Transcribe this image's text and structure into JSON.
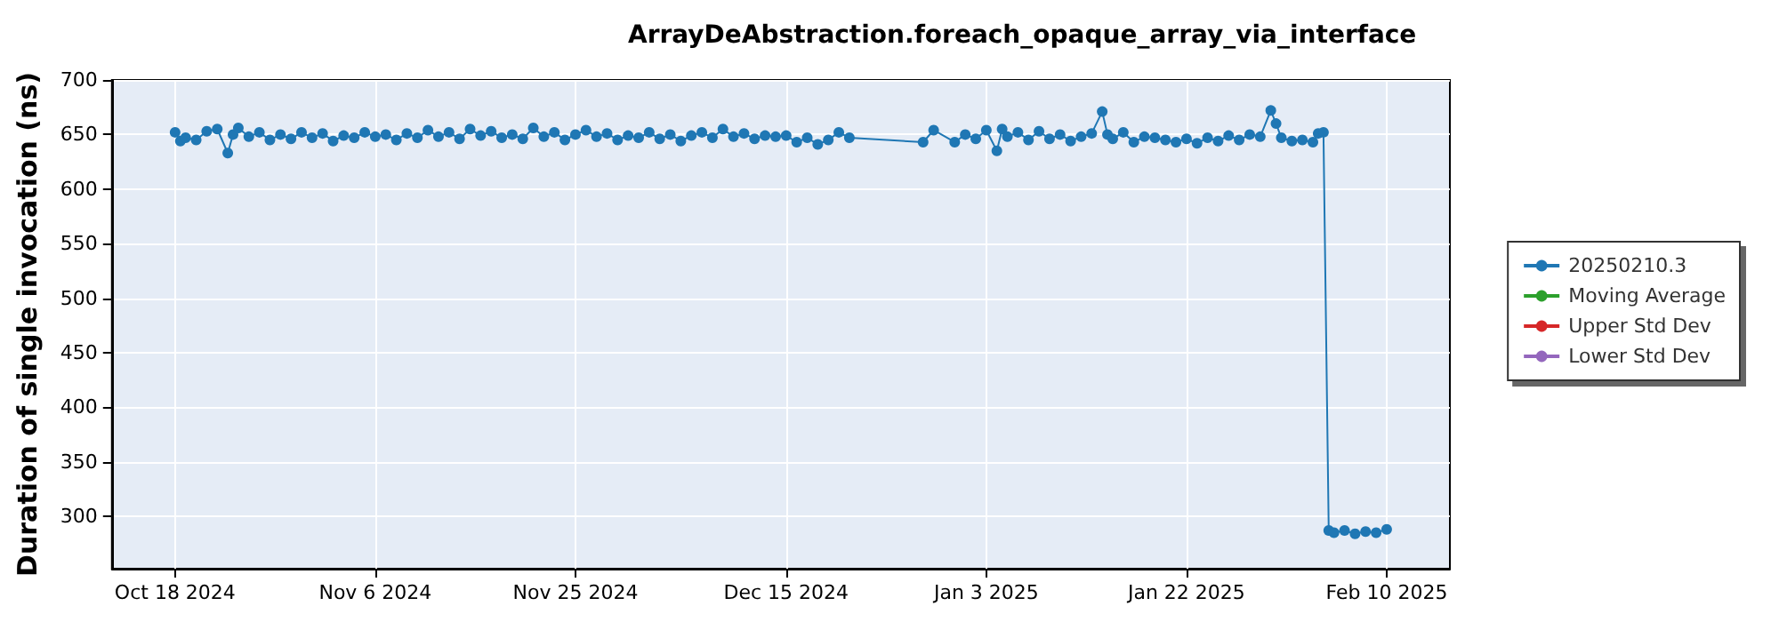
{
  "chart_data": {
    "type": "line",
    "title": "ArrayDeAbstraction.foreach_opaque_array_via_interface",
    "ylabel": "Duration of single invocation (ns)",
    "xlim": [
      "2024-10-12",
      "2025-02-16"
    ],
    "xticks": [
      {
        "value": "2024-10-18",
        "label": "Oct 18 2024"
      },
      {
        "value": "2024-11-06",
        "label": "Nov 6 2024"
      },
      {
        "value": "2024-11-25",
        "label": "Nov 25 2024"
      },
      {
        "value": "2024-12-15",
        "label": "Dec 15 2024"
      },
      {
        "value": "2025-01-03",
        "label": "Jan 3 2025"
      },
      {
        "value": "2025-01-22",
        "label": "Jan 22 2025"
      },
      {
        "value": "2025-02-10",
        "label": "Feb 10 2025"
      }
    ],
    "ylim": [
      252,
      700
    ],
    "yticks": [
      300,
      350,
      400,
      450,
      500,
      550,
      600,
      650,
      700
    ],
    "grid": true,
    "legend": "right",
    "marker": "circle",
    "line_style": "solid",
    "x": [
      "2024-10-18",
      "2024-10-18T12:00",
      "2024-10-19",
      "2024-10-20",
      "2024-10-21",
      "2024-10-22",
      "2024-10-23",
      "2024-10-23T12:00",
      "2024-10-24",
      "2024-10-25",
      "2024-10-26",
      "2024-10-27",
      "2024-10-28",
      "2024-10-29",
      "2024-10-30",
      "2024-10-31",
      "2024-11-01",
      "2024-11-02",
      "2024-11-03",
      "2024-11-04",
      "2024-11-05",
      "2024-11-06",
      "2024-11-07",
      "2024-11-08",
      "2024-11-09",
      "2024-11-10",
      "2024-11-11",
      "2024-11-12",
      "2024-11-13",
      "2024-11-14",
      "2024-11-15",
      "2024-11-16",
      "2024-11-17",
      "2024-11-18",
      "2024-11-19",
      "2024-11-20",
      "2024-11-21",
      "2024-11-22",
      "2024-11-23",
      "2024-11-24",
      "2024-11-25",
      "2024-11-26",
      "2024-11-27",
      "2024-11-28",
      "2024-11-29",
      "2024-11-30",
      "2024-12-01",
      "2024-12-02",
      "2024-12-03",
      "2024-12-04",
      "2024-12-05",
      "2024-12-06",
      "2024-12-07",
      "2024-12-08",
      "2024-12-09",
      "2024-12-10",
      "2024-12-11",
      "2024-12-12",
      "2024-12-13",
      "2024-12-14",
      "2024-12-15",
      "2024-12-16",
      "2024-12-17",
      "2024-12-18",
      "2024-12-19",
      "2024-12-20",
      "2024-12-21",
      "2024-12-28",
      "2024-12-29",
      "2024-12-31",
      "2025-01-01",
      "2025-01-02",
      "2025-01-03",
      "2025-01-04",
      "2025-01-04T12:00",
      "2025-01-05",
      "2025-01-06",
      "2025-01-07",
      "2025-01-08",
      "2025-01-09",
      "2025-01-10",
      "2025-01-11",
      "2025-01-12",
      "2025-01-13",
      "2025-01-14",
      "2025-01-14T12:00",
      "2025-01-15",
      "2025-01-16",
      "2025-01-17",
      "2025-01-18",
      "2025-01-19",
      "2025-01-20",
      "2025-01-21",
      "2025-01-22",
      "2025-01-23",
      "2025-01-24",
      "2025-01-25",
      "2025-01-26",
      "2025-01-27",
      "2025-01-28",
      "2025-01-29",
      "2025-01-30",
      "2025-01-30T12:00",
      "2025-01-31",
      "2025-02-01",
      "2025-02-02",
      "2025-02-03",
      "2025-02-03T12:00",
      "2025-02-04",
      "2025-02-04T12:00",
      "2025-02-05",
      "2025-02-06",
      "2025-02-07",
      "2025-02-08",
      "2025-02-09",
      "2025-02-10"
    ],
    "series": [
      {
        "name": "20250210.3",
        "color": "#1f77b4",
        "values": [
          652,
          644,
          647,
          645,
          653,
          655,
          633,
          650,
          656,
          648,
          652,
          645,
          650,
          646,
          652,
          647,
          651,
          644,
          649,
          647,
          652,
          648,
          650,
          645,
          651,
          647,
          654,
          648,
          652,
          646,
          655,
          649,
          653,
          647,
          650,
          646,
          656,
          648,
          652,
          645,
          650,
          654,
          648,
          651,
          645,
          649,
          647,
          652,
          646,
          650,
          644,
          649,
          652,
          647,
          655,
          648,
          651,
          646,
          649,
          648,
          649,
          643,
          647,
          641,
          645,
          652,
          647,
          643,
          654,
          643,
          650,
          646,
          654,
          635,
          655,
          648,
          652,
          645,
          653,
          646,
          650,
          644,
          648,
          651,
          671,
          650,
          646,
          652,
          643,
          648,
          647,
          645,
          643,
          646,
          642,
          647,
          644,
          649,
          645,
          650,
          648,
          672,
          660,
          647,
          644,
          645,
          643,
          651,
          652,
          287,
          285,
          287,
          284,
          286,
          285,
          288
        ]
      },
      {
        "name": "Moving Average",
        "color": "#2ca02c",
        "values": [
          null,
          null,
          null,
          null,
          null,
          null,
          null,
          null,
          null,
          null,
          null,
          null,
          null,
          null,
          null,
          null,
          null,
          null,
          null,
          null,
          null,
          null,
          null,
          null,
          null,
          null,
          null,
          null,
          null,
          null,
          null,
          null,
          null,
          null,
          null,
          null,
          null,
          null,
          null,
          null,
          null,
          null,
          null,
          null,
          null,
          null,
          null,
          null,
          null,
          null,
          null,
          null,
          null,
          null,
          null,
          null,
          null,
          null,
          null,
          null,
          null,
          null,
          null,
          null,
          null,
          null,
          null,
          null,
          null,
          null,
          null,
          null,
          null,
          null,
          null,
          null,
          null,
          null,
          null,
          null,
          null,
          null,
          null,
          null,
          null,
          null,
          null,
          null,
          null,
          null,
          null,
          null,
          null,
          null,
          null,
          null,
          null,
          null,
          null,
          null,
          null,
          null,
          null,
          null,
          null,
          null,
          null,
          null,
          null,
          null,
          null,
          null,
          null,
          null,
          null,
          null
        ]
      },
      {
        "name": "Upper Std Dev",
        "color": "#d62728",
        "values": [
          null,
          null,
          null,
          null,
          null,
          null,
          null,
          null,
          null,
          null,
          null,
          null,
          null,
          null,
          null,
          null,
          null,
          null,
          null,
          null,
          null,
          null,
          null,
          null,
          null,
          null,
          null,
          null,
          null,
          null,
          null,
          null,
          null,
          null,
          null,
          null,
          null,
          null,
          null,
          null,
          null,
          null,
          null,
          null,
          null,
          null,
          null,
          null,
          null,
          null,
          null,
          null,
          null,
          null,
          null,
          null,
          null,
          null,
          null,
          null,
          null,
          null,
          null,
          null,
          null,
          null,
          null,
          null,
          null,
          null,
          null,
          null,
          null,
          null,
          null,
          null,
          null,
          null,
          null,
          null,
          null,
          null,
          null,
          null,
          null,
          null,
          null,
          null,
          null,
          null,
          null,
          null,
          null,
          null,
          null,
          null,
          null,
          null,
          null,
          null,
          null,
          null,
          null,
          null,
          null,
          null,
          null,
          null,
          null,
          null,
          null,
          null,
          null,
          null,
          null,
          null
        ]
      },
      {
        "name": "Lower Std Dev",
        "color": "#9467bd",
        "values": [
          null,
          null,
          null,
          null,
          null,
          null,
          null,
          null,
          null,
          null,
          null,
          null,
          null,
          null,
          null,
          null,
          null,
          null,
          null,
          null,
          null,
          null,
          null,
          null,
          null,
          null,
          null,
          null,
          null,
          null,
          null,
          null,
          null,
          null,
          null,
          null,
          null,
          null,
          null,
          null,
          null,
          null,
          null,
          null,
          null,
          null,
          null,
          null,
          null,
          null,
          null,
          null,
          null,
          null,
          null,
          null,
          null,
          null,
          null,
          null,
          null,
          null,
          null,
          null,
          null,
          null,
          null,
          null,
          null,
          null,
          null,
          null,
          null,
          null,
          null,
          null,
          null,
          null,
          null,
          null,
          null,
          null,
          null,
          null,
          null,
          null,
          null,
          null,
          null,
          null,
          null,
          null,
          null,
          null,
          null,
          null,
          null,
          null,
          null,
          null,
          null,
          null,
          null,
          null,
          null,
          null,
          null,
          null,
          null,
          null,
          null,
          null,
          null,
          null,
          null,
          null
        ]
      }
    ]
  }
}
